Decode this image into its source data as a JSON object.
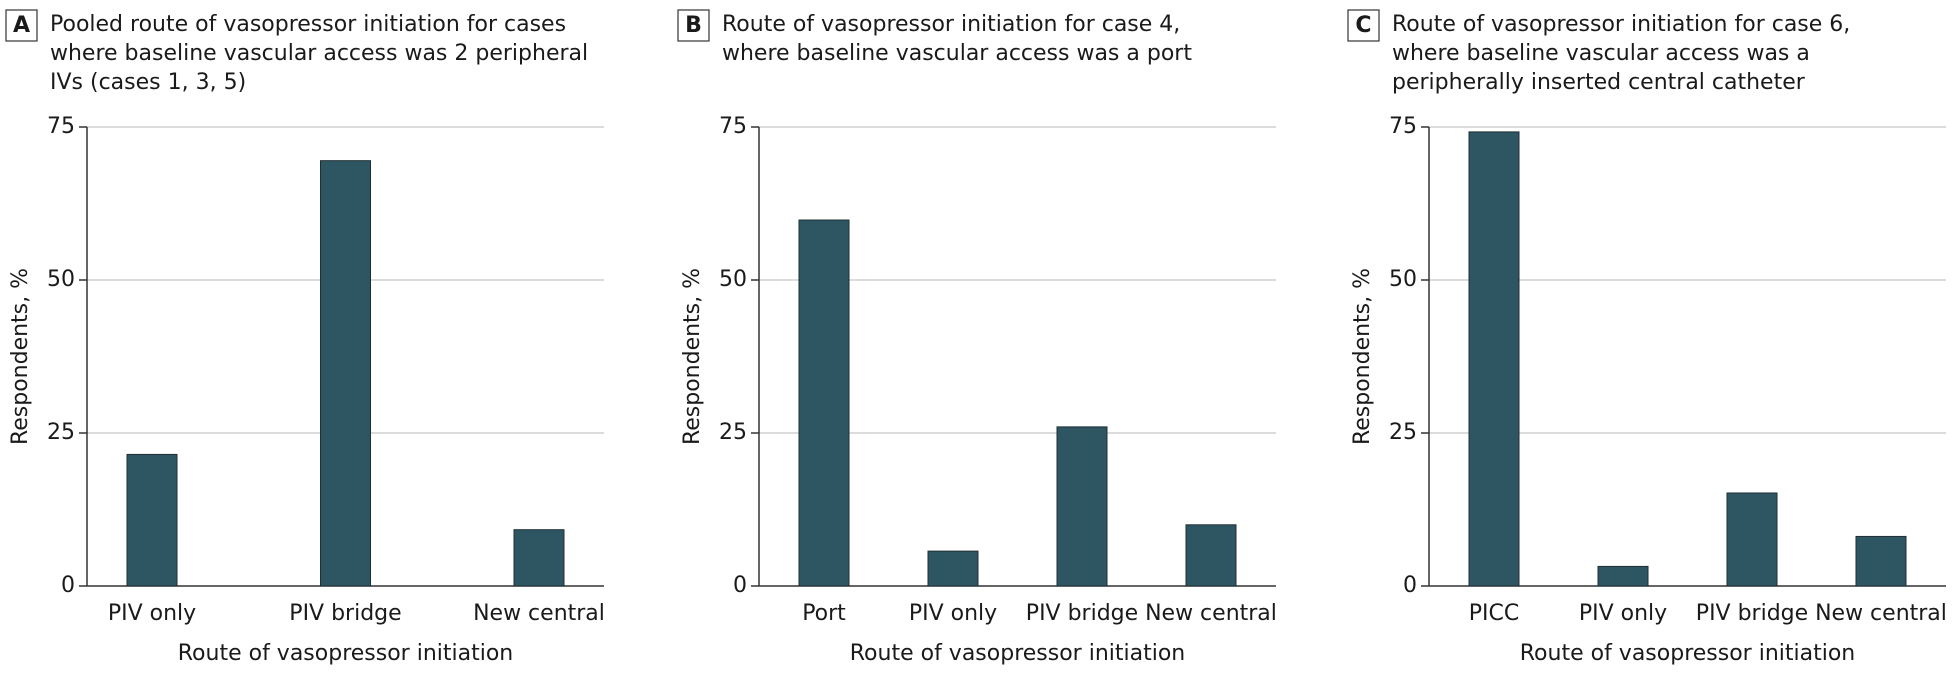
{
  "chart_data": [
    {
      "type": "bar",
      "panel_label": "A",
      "title_lines": [
        "Pooled route of vasopressor initiation for cases",
        "where baseline vascular access was 2 peripheral",
        "IVs (cases 1, 3, 5)"
      ],
      "x_label": "Route of vasopressor initiation",
      "y_label": "Respondents, %",
      "categories": [
        "PIV only",
        "PIV bridge",
        "New central"
      ],
      "values": [
        21.5,
        69.5,
        9.2
      ],
      "color": "#2e5562",
      "ylim": [
        0,
        75
      ],
      "yticks": [
        0,
        25,
        50,
        75
      ],
      "grid": true
    },
    {
      "type": "bar",
      "panel_label": "B",
      "title_lines": [
        "Route of vasopressor initiation for case 4,",
        "where baseline vascular access was a port"
      ],
      "x_label": "Route of vasopressor initiation",
      "y_label": "Respondents, %",
      "categories": [
        "Port",
        "PIV only",
        "PIV bridge",
        "New central"
      ],
      "values": [
        59.8,
        5.7,
        26,
        10
      ],
      "color": "#2e5562",
      "ylim": [
        0,
        75
      ],
      "yticks": [
        0,
        25,
        50,
        75
      ],
      "grid": true
    },
    {
      "type": "bar",
      "panel_label": "C",
      "title_lines": [
        "Route of vasopressor initiation for case 6,",
        "where baseline vascular access was a",
        "peripherally inserted central catheter"
      ],
      "x_label": "Route of vasopressor initiation",
      "y_label": "Respondents, %",
      "categories": [
        "PICC",
        "PIV only",
        "PIV bridge",
        "New central"
      ],
      "values": [
        74.2,
        3.2,
        15.2,
        8.1
      ],
      "color": "#2e5562",
      "ylim": [
        0,
        75
      ],
      "yticks": [
        0,
        25,
        50,
        75
      ],
      "grid": true
    }
  ]
}
